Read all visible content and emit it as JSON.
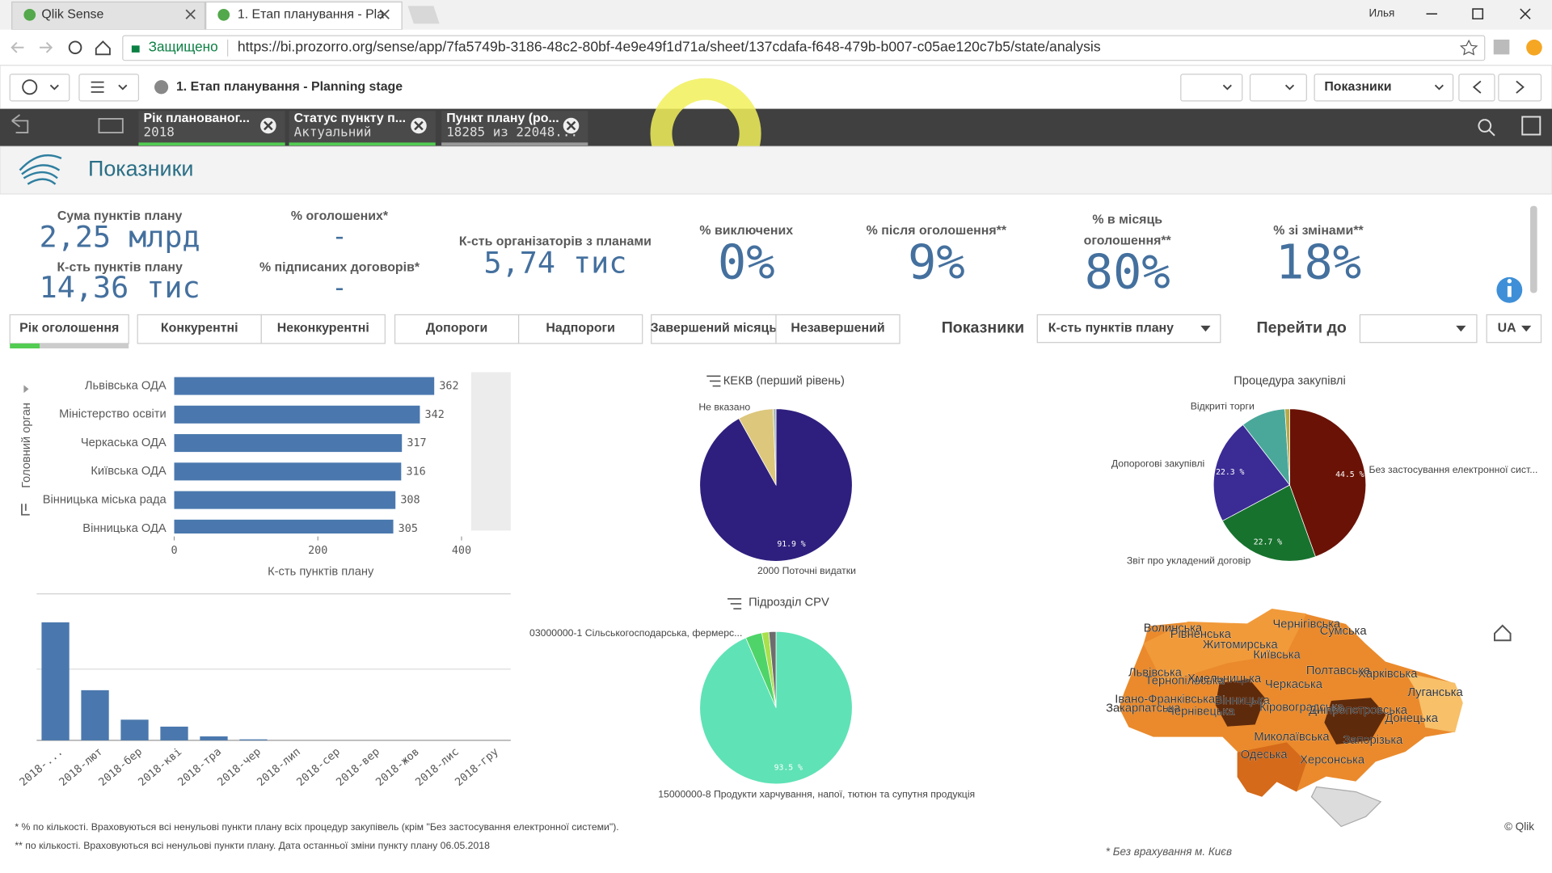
{
  "browser": {
    "tabs": [
      "Qlik Sense",
      "1. Етап планування - Pla"
    ],
    "user": "Илья",
    "security": "Защищено",
    "url": "https://bi.prozorro.org/sense/app/7fa5749b-3186-48c2-80bf-4e9e49f1d71a/sheet/137cdafa-f648-479b-b007-c05ae120c7b5/state/analysis"
  },
  "toolbar": {
    "app_title": "1. Етап планування - Planning stage",
    "sheet_menu": "Показники"
  },
  "selections": [
    {
      "field": "Рік планованог...",
      "value": "2018"
    },
    {
      "field": "Статус пункту п...",
      "value": "Актуальний"
    },
    {
      "field": "Пункт плану (ро...",
      "value": "18285 из 22048..."
    }
  ],
  "sheet": {
    "title": "Показники"
  },
  "kpis": [
    {
      "label": "Сума пунктів плану",
      "value": "2,25 млрд"
    },
    {
      "label": "К-сть пунктів плану",
      "value": "14,36 тис"
    },
    {
      "label": "% оголошених*",
      "value": "-"
    },
    {
      "label": "% підписаних договорів*",
      "value": "-"
    },
    {
      "label": "К-сть організаторів з планами",
      "value": "5,74 тис"
    },
    {
      "label": "% виключених",
      "value": "0%"
    },
    {
      "label": "% після оголошення**",
      "value": "9%"
    },
    {
      "label": "% в місяць оголошення**",
      "value": "80%"
    },
    {
      "label": "% зі змінами**",
      "value": "18%"
    }
  ],
  "filters": {
    "buttons": [
      "Рік оголошення",
      "Конкурентні",
      "Неконкурентні",
      "Допороги",
      "Надпороги",
      "Завершений місяць",
      "Незавершений"
    ],
    "measure_label": "Показники",
    "measure_value": "К-сть пунктів плану",
    "goto_label": "Перейти до",
    "language": "UA"
  },
  "bar_chart": {
    "type": "bar",
    "orientation": "horizontal",
    "y_title": "Головний орган",
    "x_title": "К-сть пунктів плану",
    "categories": [
      "Львівська ОДА",
      "Міністерство освіти",
      "Черкаська ОДА",
      "Київська ОДА",
      "Вінницька міська рада",
      "Вінницька ОДА"
    ],
    "values": [
      362,
      342,
      317,
      316,
      308,
      305
    ],
    "color": "#4a78ae",
    "xlim": [
      0,
      412
    ],
    "xticks": [
      0,
      200,
      400
    ]
  },
  "month_chart": {
    "type": "bar",
    "orientation": "vertical",
    "categories": [
      "2018-...",
      "2018-лют",
      "2018-бер",
      "2018-кві",
      "2018-тра",
      "2018-чер",
      "2018-лип",
      "2018-сер",
      "2018-вер",
      "2018-жов",
      "2018-лис",
      "2018-гру"
    ],
    "values": [
      8330,
      3540,
      1460,
      970,
      280,
      70,
      0,
      0,
      0,
      0,
      0,
      0
    ],
    "color": "#4a78ae",
    "ylim": [
      0,
      9500
    ]
  },
  "kekv_pie": {
    "type": "pie",
    "title": "КЕКВ (перший рівень)",
    "categories": [
      "2000 Поточні видатки",
      "Не вказано",
      null
    ],
    "values": [
      91.9,
      7.5,
      0.6
    ],
    "value_labels": [
      "91.9 %",
      null,
      null
    ],
    "colors": [
      "#2e1f7e",
      "#dcc77c",
      "#a9b8ba"
    ]
  },
  "procedure_pie": {
    "type": "pie",
    "title": "Процедура закупівлі",
    "categories": [
      "Без застосування електронної сист...",
      "Звіт про укладений договір",
      "Допорогові закупівлі",
      "Відкриті торги",
      null
    ],
    "values": [
      44.5,
      22.7,
      22.3,
      9.5,
      1.0
    ],
    "value_labels": [
      "44.5 %",
      "22.7 %",
      "22.3 %",
      null,
      null
    ],
    "colors": [
      "#6a1206",
      "#17722d",
      "#3a2b95",
      "#4aa89a",
      "#b7a845"
    ]
  },
  "cpv_pie": {
    "type": "pie",
    "title": "Підрозділ CPV",
    "categories": [
      "15000000-8 Продукти харчування, напої, тютюн та супутня продукція",
      "03000000-1 Сільськогосподарська, фермерс...",
      null,
      null
    ],
    "values": [
      93.5,
      3.5,
      1.5,
      1.5
    ],
    "value_labels": [
      "93.5 %",
      null,
      null,
      null
    ],
    "colors": [
      "#5fe2b6",
      "#4fd46a",
      "#a9e04c",
      "#6d6d6d"
    ]
  },
  "map": {
    "regions": [
      "Волинська",
      "Рівненська",
      "Житомирська",
      "Чернігівська",
      "Сумська",
      "Київська",
      "Львівська",
      "Тернопільська",
      "Хмельницька",
      "Черкаська",
      "Полтавська",
      "Харківська",
      "Луганська",
      "Івано-Франківська",
      "Закарпатська",
      "Чернівецька",
      "Вінницька",
      "Кіровоградська",
      "Дніпропетровська",
      "Донецька",
      "Миколаївська",
      "Запорізька",
      "Одеська",
      "Херсонська"
    ],
    "note": "* Без врахування м. Києв",
    "credit": "© Qlik"
  },
  "footnotes": [
    "* % по кількості. Враховуються всі ненульові пункти плану всіх процедур закупівель (крім \"Без застосування електронної системи\").",
    "** по кількості. Враховуються всі ненульові пункти плану. Дата останньої зміни пункту плану 06.05.2018"
  ]
}
